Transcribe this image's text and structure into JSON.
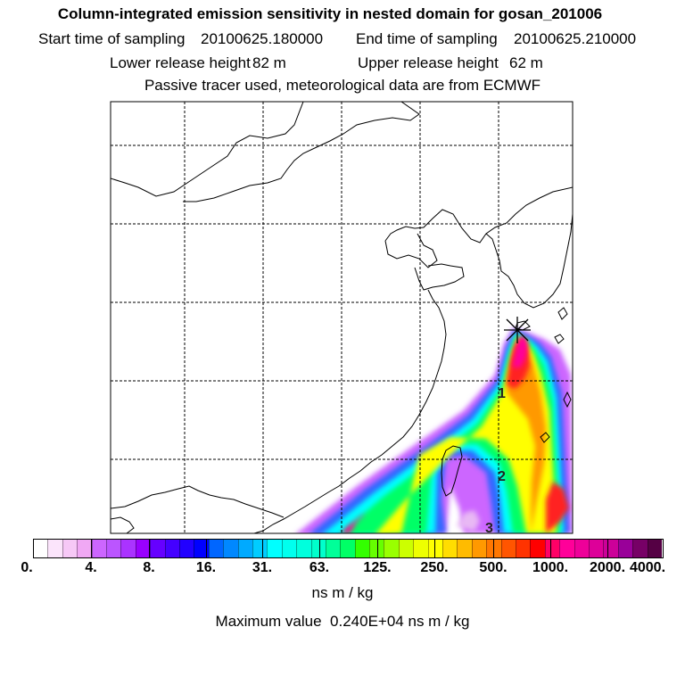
{
  "header": {
    "title": "Column-integrated emission sensitivity in nested domain for gosan_201006",
    "start_label": "Start time of sampling",
    "start_value": "20100625.180000",
    "end_label": "End time of sampling",
    "end_value": "20100625.210000",
    "lower_label": "Lower release height",
    "lower_value": "82 m",
    "upper_label": "Upper release height",
    "upper_value": "62 m",
    "tracer_note": "Passive tracer used, meteorological data are from ECMWF"
  },
  "map": {
    "receptor_symbol": "asterisk",
    "trajectory_labels": [
      "1",
      "2",
      "3"
    ],
    "plume_colors": {
      "low": "#cc66ff",
      "mid_low": "#00ffff",
      "mid": "#00ff66",
      "mid_high": "#ffff00",
      "high": "#ff0000",
      "peak": "#ff0099"
    }
  },
  "colorbar": {
    "tick_labels": [
      "0.",
      "4.",
      "8.",
      "16.",
      "31.",
      "63.",
      "125.",
      "250.",
      "500.",
      "1000.",
      "2000.",
      "4000."
    ],
    "colors": [
      "#ffffff",
      "#fbe4fb",
      "#f6c8f6",
      "#f0a8f4",
      "#cc66ff",
      "#bb55ff",
      "#aa33ff",
      "#9900ff",
      "#6600ff",
      "#4400ff",
      "#2200ff",
      "#0000ff",
      "#0066ff",
      "#0088ff",
      "#00aaff",
      "#00ccff",
      "#00ffff",
      "#00ffee",
      "#00ffdd",
      "#00ffcc",
      "#00ff99",
      "#00ff66",
      "#33ff00",
      "#66ff00",
      "#99ff00",
      "#ccff00",
      "#eeff00",
      "#ffff00",
      "#ffdd00",
      "#ffbb00",
      "#ff9900",
      "#ff7700",
      "#ff5500",
      "#ff3300",
      "#ff0000",
      "#ff0066",
      "#ff0099",
      "#ee0099",
      "#dd0099",
      "#cc0099",
      "#990099",
      "#770066",
      "#550044"
    ],
    "unit": "ns m / kg"
  },
  "footer": {
    "max_label": "Maximum value",
    "max_value": "0.240E+04",
    "max_unit": "ns m / kg"
  }
}
